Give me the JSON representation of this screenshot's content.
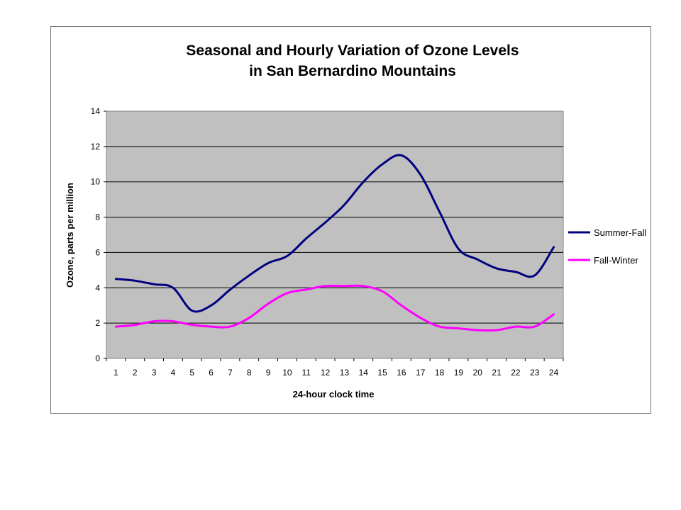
{
  "chart_data": {
    "type": "line",
    "title": [
      "Seasonal and Hourly Variation of Ozone Levels",
      "in San Bernardino Mountains"
    ],
    "xlabel": "24-hour clock time",
    "ylabel": "Ozone, parts per million",
    "categories": [
      "1",
      "2",
      "3",
      "4",
      "5",
      "6",
      "7",
      "8",
      "9",
      "10",
      "11",
      "12",
      "13",
      "14",
      "15",
      "16",
      "17",
      "18",
      "19",
      "20",
      "21",
      "22",
      "23",
      "24"
    ],
    "ylim": [
      0,
      14
    ],
    "yticks": [
      0,
      2,
      4,
      6,
      8,
      10,
      12,
      14
    ],
    "grid": true,
    "legend_position": "right",
    "plot_background": "#c0c0c0",
    "series": [
      {
        "name": "Summer-Fall",
        "color": "#000080",
        "values": [
          4.5,
          4.4,
          4.2,
          4.0,
          2.7,
          3.0,
          3.9,
          4.7,
          5.4,
          5.8,
          6.8,
          7.7,
          8.7,
          10.0,
          11.0,
          11.5,
          10.4,
          8.3,
          6.2,
          5.6,
          5.1,
          4.9,
          4.7,
          6.3
        ]
      },
      {
        "name": "Fall-Winter",
        "color": "#ff00ff",
        "values": [
          1.8,
          1.9,
          2.1,
          2.1,
          1.9,
          1.8,
          1.8,
          2.3,
          3.1,
          3.7,
          3.9,
          4.1,
          4.1,
          4.1,
          3.8,
          3.0,
          2.3,
          1.8,
          1.7,
          1.6,
          1.6,
          1.8,
          1.8,
          2.5
        ]
      }
    ]
  }
}
